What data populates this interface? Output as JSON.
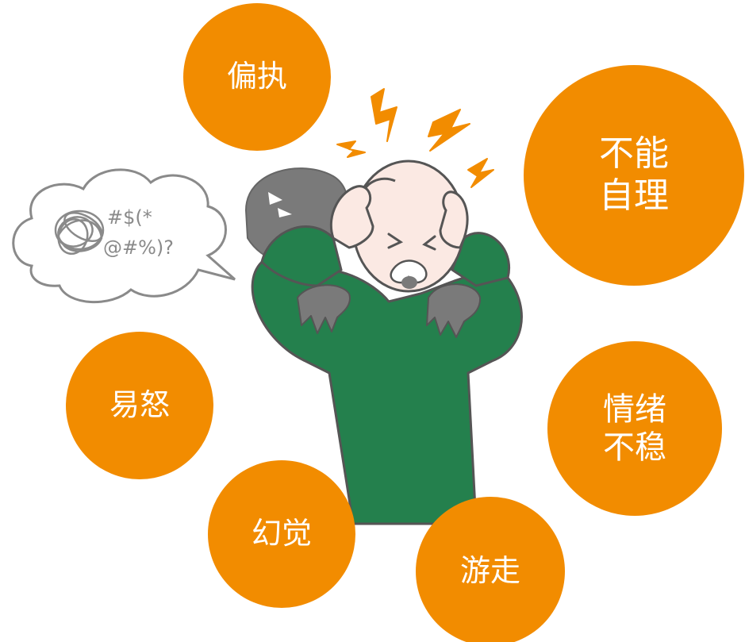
{
  "symptoms": {
    "paranoia": "偏执",
    "unable_self_care": "不能\n自理",
    "irritability": "易怒",
    "mood_unstable": "情绪\n不稳",
    "hallucination": "幻觉",
    "wandering": "游走"
  },
  "thought_bubble": {
    "line1": "#$(*",
    "line2": "@#%)?"
  },
  "colors": {
    "bubble": "#f28c00",
    "shirt": "#24804d",
    "shadow": "#7a7a7a",
    "lightning": "#f28c00"
  }
}
